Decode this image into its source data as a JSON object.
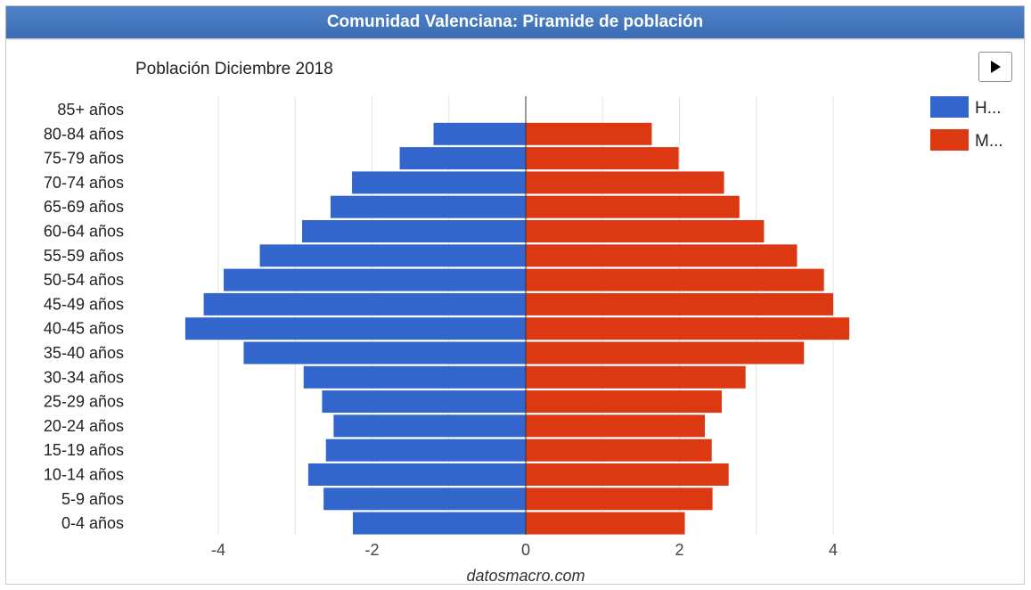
{
  "header": {
    "title": "Comunidad Valenciana: Piramide de población"
  },
  "controls": {
    "play_icon": "play-icon"
  },
  "chart_data": {
    "type": "bar",
    "orientation": "horizontal",
    "stacked": "diverging",
    "title": "Población Diciembre 2018",
    "source": "datosmacro.com",
    "categories": [
      "85+ años",
      "80-84 años",
      "75-79 años",
      "70-74 años",
      "65-69 años",
      "60-64 años",
      "55-59 años",
      "50-54 años",
      "45-49 años",
      "40-45 años",
      "35-40 años",
      "30-34 años",
      "25-29 años",
      "20-24 años",
      "15-19 años",
      "10-14 años",
      "5-9 años",
      "0-4 años"
    ],
    "series": [
      {
        "name": "H...",
        "color": "#3366cc",
        "values": [
          0,
          -1.2,
          -1.64,
          -2.26,
          -2.54,
          -2.91,
          -3.46,
          -3.93,
          -4.19,
          -4.43,
          -3.67,
          -2.89,
          -2.65,
          -2.5,
          -2.6,
          -2.83,
          -2.63,
          -2.25
        ]
      },
      {
        "name": "M...",
        "color": "#dc3912",
        "values": [
          0,
          1.64,
          1.99,
          2.58,
          2.78,
          3.1,
          3.53,
          3.88,
          4.0,
          4.21,
          3.62,
          2.86,
          2.55,
          2.33,
          2.42,
          2.64,
          2.43,
          2.07
        ]
      }
    ],
    "x_ticks": [
      -4,
      -2,
      0,
      2,
      4
    ],
    "x_tick_labels": [
      "-4",
      "-2",
      "0",
      "2",
      "4"
    ],
    "xlim": [
      -5,
      5
    ],
    "grid": true,
    "legend_position": "top-right"
  }
}
